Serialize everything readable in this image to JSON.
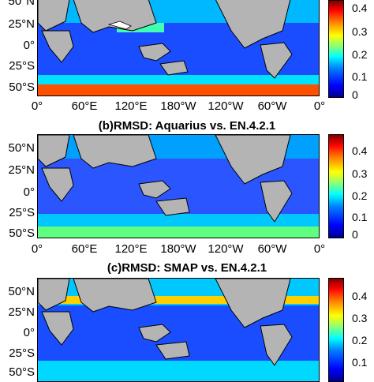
{
  "panels": [
    {
      "title": "",
      "lat_ticks": [
        "50°N",
        "25°N",
        "0°",
        "25°S",
        "50°S"
      ],
      "lon_ticks": [
        "0°",
        "60°E",
        "120°E",
        "180°W",
        "120°W",
        "60°W",
        "0°"
      ],
      "colorbar_ticks": [
        "0.4",
        "0.3",
        "0.2",
        "0.1",
        "0"
      ]
    },
    {
      "title": "(b)RMSD: Aquarius vs. EN.4.2.1",
      "lat_ticks": [
        "50°N",
        "25°N",
        "0°",
        "25°S",
        "50°S"
      ],
      "lon_ticks": [
        "0°",
        "60°E",
        "120°E",
        "180°W",
        "120°W",
        "60°W",
        "0°"
      ],
      "colorbar_ticks": [
        "0.4",
        "0.3",
        "0.2",
        "0.1",
        "0"
      ]
    },
    {
      "title": "(c)RMSD: SMAP vs. EN.4.2.1",
      "lat_ticks": [
        "50°N",
        "25°N",
        "0°",
        "25°S",
        "50°S"
      ],
      "lon_ticks": [],
      "colorbar_ticks": [
        "0.4",
        "0.3",
        "0.2",
        "0.1"
      ]
    }
  ],
  "colors": {
    "land": "#b4b4b4",
    "ocean_low": "#1e3cff",
    "ocean_mid": "#00c8ff",
    "ocean_high": "#ff3c00"
  }
}
